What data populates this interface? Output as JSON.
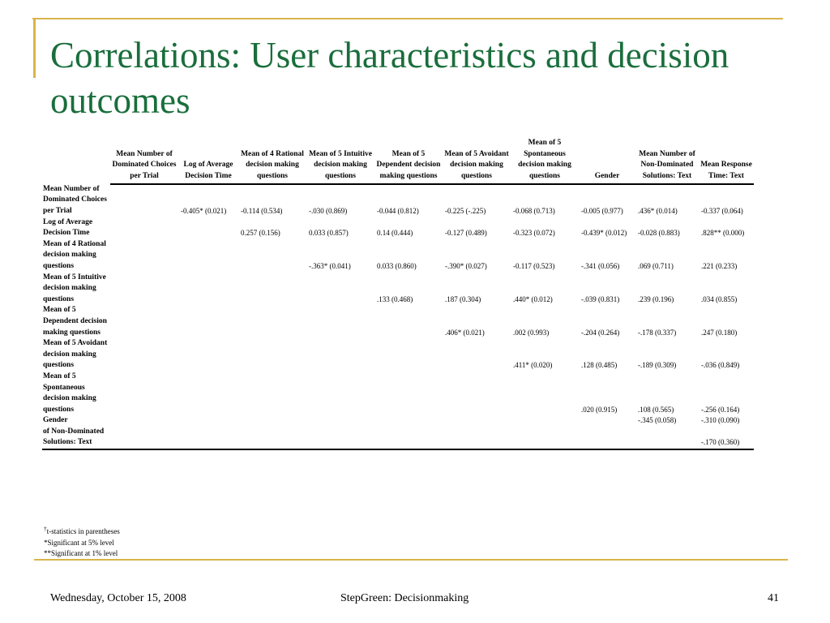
{
  "title": "Correlations: User characteristics and decision outcomes",
  "columns": [
    "Mean Number of Dominated Choices per Trial",
    "Log of Average Decision Time",
    "Mean of 4 Rational decision making questions",
    "Mean of 5 Intuitive decision making questions",
    "Mean of 5 Dependent decision making questions",
    "Mean of 5 Avoidant decision making questions",
    "Mean of 5 Spontaneous decision making questions",
    "Gender",
    "Mean Number of Non-Dominated Solutions: Text",
    "Mean Response Time: Text"
  ],
  "rows": [
    {
      "label": "Mean Number of Dominated Choices per Trial",
      "cells": [
        "",
        "-0.405* (0.021)",
        "-0.114 (0.534)",
        "-.030 (0.869)",
        "-0.044 (0.812)",
        "-0.225 (-.225)",
        "-0.068 (0.713)",
        "-0.005 (0.977)",
        ".436* (0.014)",
        "-0.337 (0.064)"
      ]
    },
    {
      "label": "Log of Average Decision Time",
      "cells": [
        "",
        "",
        "0.257 (0.156)",
        "0.033 (0.857)",
        "0.14 (0.444)",
        "-0.127 (0.489)",
        "-0.323 (0.072)",
        "-0.439* (0.012)",
        "-0.028 (0.883)",
        ".828** (0.000)"
      ]
    },
    {
      "label": "Mean of 4 Rational decision making questions",
      "cells": [
        "",
        "",
        "",
        "-.363* (0.041)",
        "0.033 (0.860)",
        "-.390* (0.027)",
        "-0.117 (0.523)",
        "-.341 (0.056)",
        ".069 (0.711)",
        ".221 (0.233)"
      ]
    },
    {
      "label": "Mean of 5 Intuitive decision making questions",
      "cells": [
        "",
        "",
        "",
        "",
        ".133 (0.468)",
        ".187 (0.304)",
        ".440* (0.012)",
        "-.039 (0.831)",
        ".239 (0.196)",
        ".034 (0.855)"
      ]
    },
    {
      "label": "Mean of 5 Dependent decision making questions",
      "cells": [
        "",
        "",
        "",
        "",
        "",
        ".406* (0.021)",
        ".002 (0.993)",
        "-.204 (0.264)",
        "-.178 (0.337)",
        ".247 (0.180)"
      ]
    },
    {
      "label": "Mean of 5 Avoidant decision making questions",
      "cells": [
        "",
        "",
        "",
        "",
        "",
        "",
        ".411* (0.020)",
        ".128 (0.485)",
        "-.189 (0.309)",
        "-.036 (0.849)"
      ]
    },
    {
      "label": "Mean of 5 Spontaneous decision making questions",
      "cells": [
        "",
        "",
        "",
        "",
        "",
        "",
        "",
        ".020 (0.915)",
        ".108 (0.565)",
        "-.256 (0.164)"
      ]
    },
    {
      "label": "Gender",
      "cells": [
        "",
        "",
        "",
        "",
        "",
        "",
        "",
        "",
        "-.345 (0.058)",
        "-.310 (0.090)"
      ]
    },
    {
      "label": "of Non-Dominated Solutions: Text",
      "cells": [
        "",
        "",
        "",
        "",
        "",
        "",
        "",
        "",
        "",
        "-.170 (0.360)"
      ]
    }
  ],
  "footnotes": {
    "dagger": "†",
    "tstat": "t-statistics in parentheses",
    "sig5": "*Significant at 5% level",
    "sig1": "**Significant at 1% level"
  },
  "footer": {
    "date": "Wednesday, October 15, 2008",
    "center": "StepGreen: Decisionmaking",
    "page": "41"
  },
  "colors": {
    "title": "#1a6e3c",
    "accent": "#d9b44a"
  }
}
